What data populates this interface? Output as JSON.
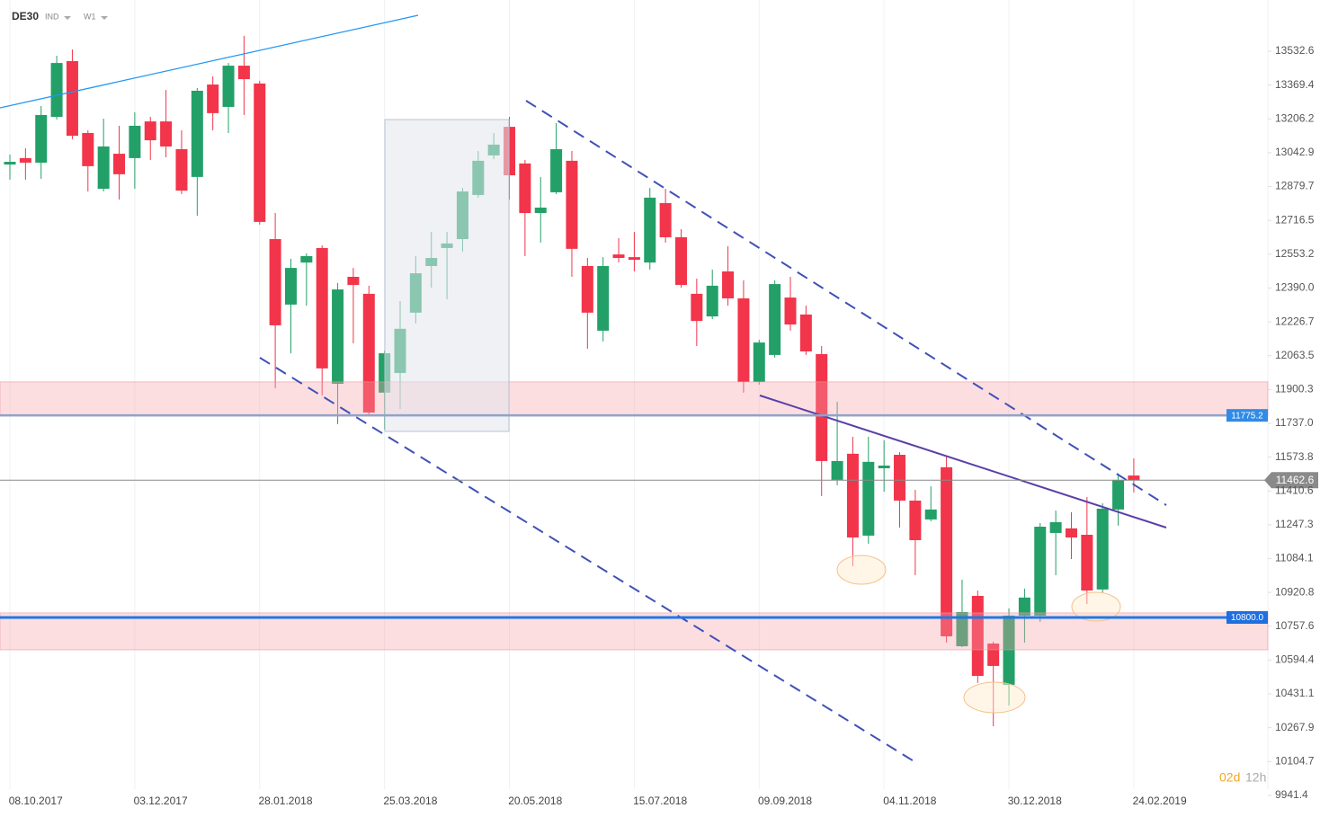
{
  "header": {
    "symbol": "DE30",
    "market": "IND",
    "interval": "W1"
  },
  "timer": {
    "days": "02d",
    "hours": "12h"
  },
  "chart_data": {
    "type": "candlestick",
    "up_color": "#22a067",
    "down_color": "#f2354a",
    "categories": [
      null,
      null,
      "08.10.2017",
      null,
      null,
      null,
      null,
      null,
      null,
      null,
      "03.12.2017",
      null,
      null,
      null,
      null,
      null,
      null,
      null,
      "28.01.2018",
      null,
      null,
      null,
      null,
      null,
      null,
      null,
      "25.03.2018",
      null,
      null,
      null,
      null,
      null,
      null,
      null,
      "20.05.2018",
      null,
      null,
      null,
      null,
      null,
      null,
      null,
      "15.07.2018",
      null,
      null,
      null,
      null,
      null,
      null,
      null,
      "09.09.2018",
      null,
      null,
      null,
      null,
      null,
      null,
      null,
      "04.11.2018",
      null,
      null,
      null,
      null,
      null,
      null,
      null,
      "30.12.2018",
      null,
      null,
      null,
      null,
      null,
      null,
      null,
      "24.02.2019"
    ],
    "open": [
      12986,
      13017,
      12995,
      13216,
      13485,
      13138,
      12869,
      13038,
      13017,
      13194,
      13194,
      13060,
      12926,
      13372,
      13264,
      13463,
      13377,
      12626,
      12310,
      12513,
      12583,
      11928,
      12444,
      12362,
      11885,
      11980,
      12271,
      12496,
      12583,
      12626,
      12839,
      13030,
      13168,
      12991,
      12752,
      12852,
      13004,
      12496,
      12184,
      12552,
      12539,
      12513,
      12800,
      12635,
      12362,
      12253,
      12470,
      12340,
      11937,
      12067,
      12344,
      12262,
      12071,
      11464,
      11590,
      11195,
      11520,
      11585,
      11364,
      11273,
      11525,
      10661,
      10904,
      10674,
      10475,
      10809,
      10809,
      11208,
      11230,
      11199,
      10935,
      11321,
      11485,
      null,
      null
    ],
    "high": [
      13034,
      13064,
      13268,
      13511,
      13541,
      13151,
      13207,
      13173,
      13238,
      13216,
      13346,
      13151,
      13355,
      13411,
      13476,
      13607,
      13390,
      12752,
      12531,
      12557,
      12596,
      12414,
      12487,
      12401,
      12088,
      12327,
      12544,
      12661,
      12661,
      12873,
      13051,
      13138,
      13216,
      13008,
      12926,
      13186,
      13051,
      12535,
      12539,
      12631,
      12661,
      12873,
      12869,
      12674,
      12435,
      12479,
      12592,
      12427,
      12140,
      12427,
      12444,
      12305,
      12110,
      11841,
      11672,
      11672,
      11655,
      11598,
      11416,
      11433,
      11577,
      10982,
      10930,
      10683,
      10844,
      10939,
      11256,
      11316,
      11308,
      11381,
      11351,
      11494,
      11568,
      null,
      null
    ],
    "low": [
      12913,
      12913,
      12917,
      13203,
      13108,
      12856,
      12856,
      12817,
      12869,
      13008,
      13021,
      12843,
      12739,
      13151,
      13138,
      13225,
      12696,
      11906,
      12075,
      12305,
      11872,
      11733,
      12123,
      11776,
      11707,
      11806,
      12219,
      12392,
      12336,
      12566,
      12826,
      13012,
      12817,
      12544,
      12609,
      12843,
      12444,
      12097,
      12132,
      12513,
      12470,
      12479,
      12609,
      12392,
      12110,
      12240,
      12305,
      11885,
      11924,
      12054,
      12184,
      12067,
      11386,
      11438,
      11047,
      11156,
      11407,
      11234,
      11004,
      11264,
      10679,
      10657,
      10484,
      10275,
      10375,
      10679,
      10778,
      11004,
      11082,
      10865,
      10917,
      11243,
      11403,
      null,
      null
    ],
    "close": [
      12999,
      12995,
      13225,
      13476,
      13125,
      12978,
      13073,
      12939,
      13173,
      13103,
      13073,
      12860,
      13342,
      13234,
      13463,
      13398,
      12709,
      12210,
      12487,
      12544,
      12002,
      12383,
      12405,
      11789,
      12075,
      12193,
      12461,
      12535,
      12605,
      12856,
      13004,
      13082,
      12934,
      12752,
      12778,
      13060,
      12579,
      12271,
      12496,
      12535,
      12526,
      12826,
      12635,
      12405,
      12231,
      12401,
      12340,
      11937,
      12127,
      12409,
      12214,
      12084,
      11555,
      11555,
      11186,
      11551,
      11533,
      11364,
      11173,
      11321,
      10709,
      10826,
      10518,
      10566,
      10809,
      10896,
      11238,
      11260,
      11186,
      10930,
      11325,
      11464,
      11462.6,
      null,
      null
    ],
    "ylim": [
      9876,
      13780
    ],
    "yticks": [
      13532.6,
      13369.4,
      13206.2,
      13042.9,
      12879.7,
      12716.5,
      12553.2,
      {
        "value": 12390,
        "label": "12390.0"
      },
      12226.7,
      12063.5,
      11900.3,
      {
        "value": 11737,
        "label": "11737.0"
      },
      11573.8,
      11410.6,
      11247.3,
      11084.1,
      10920.8,
      10757.6,
      10594.4,
      10431.1,
      10267.9,
      10104.7,
      9941.4
    ],
    "xgrid": true,
    "last_price": 11462.6,
    "levels": [
      11775.2,
      {
        "value": 10800,
        "label": "10800.0"
      }
    ],
    "level_colors": [
      "#8fa3c8",
      "#1e78e6"
    ],
    "zones": [
      [
        11772,
        11937
      ],
      [
        10644,
        10822
      ]
    ]
  }
}
